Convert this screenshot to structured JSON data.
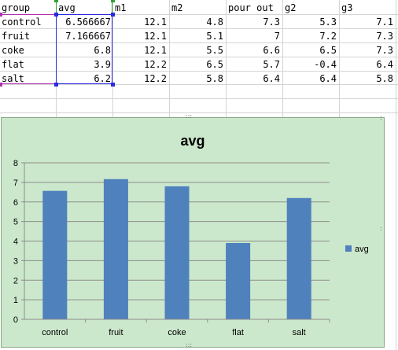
{
  "sheet": {
    "headers": [
      "group",
      "avg",
      "m1",
      "m2",
      "pour out",
      "g2",
      "g3"
    ],
    "rows": [
      [
        "control",
        "6.566667",
        "12.1",
        "4.8",
        "7.3",
        "5.3",
        "7.1"
      ],
      [
        "fruit",
        "7.166667",
        "12.1",
        "5.1",
        "7",
        "7.2",
        "7.3"
      ],
      [
        "coke",
        "6.8",
        "12.1",
        "5.5",
        "6.6",
        "6.5",
        "7.3"
      ],
      [
        "flat",
        "3.9",
        "12.2",
        "6.5",
        "5.7",
        "-0.4",
        "6.4"
      ],
      [
        "salt",
        "6.2",
        "12.2",
        "5.8",
        "6.4",
        "6.4",
        "5.8"
      ]
    ]
  },
  "colors": {
    "chart_bg": "#cce8cc",
    "bar": "#4f81bd",
    "avg_range_border": "#2a2ae0",
    "group_range_border": "#b030b0",
    "header_range_border": "#30a030"
  },
  "chart_data": {
    "type": "bar",
    "title": "avg",
    "categories": [
      "control",
      "fruit",
      "coke",
      "flat",
      "salt"
    ],
    "series": [
      {
        "name": "avg",
        "values": [
          6.566667,
          7.166667,
          6.8,
          3.9,
          6.2
        ]
      }
    ],
    "ylim": [
      0,
      8
    ],
    "yticks": [
      "0",
      "1",
      "2",
      "3",
      "4",
      "5",
      "6",
      "7",
      "8"
    ],
    "grid": true,
    "legend_position": "right"
  }
}
